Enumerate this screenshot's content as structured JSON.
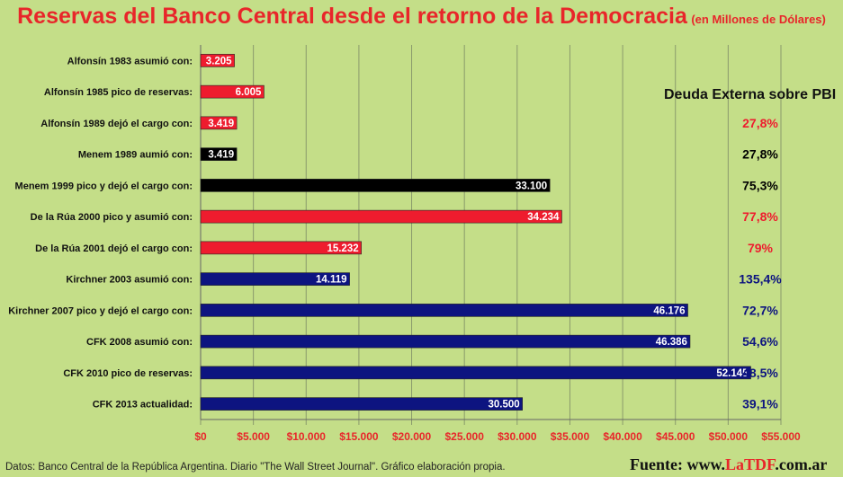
{
  "chart_data": {
    "type": "bar",
    "orientation": "horizontal",
    "title": "Reservas del Banco Central desde el retorno de la Democracia",
    "subtitle": "(en Millones de Dólares)",
    "xlim": [
      0,
      55000
    ],
    "x_ticks": [
      "$0",
      "$5.000",
      "$10.000",
      "$15.000",
      "$20.000",
      "$25.000",
      "$30.000",
      "$35.000",
      "$40.000",
      "$45.000",
      "$50.000",
      "$55.000"
    ],
    "x_tick_values": [
      0,
      5000,
      10000,
      15000,
      20000,
      25000,
      30000,
      35000,
      40000,
      45000,
      50000,
      55000
    ],
    "grid": true,
    "categories": [
      "Alfonsín 1983 asumió con:",
      "Alfonsín 1985 pico de reservas:",
      "Alfonsín 1989 dejó el cargo con:",
      "Menem 1989 aumió con:",
      "Menem 1999 pico y dejó el cargo con:",
      "De la Rúa 2000 pico y asumió con:",
      "De la Rúa 2001 dejó el cargo con:",
      "Kirchner 2003 asumió con:",
      "Kirchner 2007 pico y dejó el cargo con:",
      "CFK 2008 asumió con:",
      "CFK 2010 pico de reservas:",
      "CFK 2013 actualidad:"
    ],
    "values": [
      3205,
      6005,
      3419,
      3419,
      33100,
      34234,
      15232,
      14119,
      46176,
      46386,
      52145,
      30500
    ],
    "value_labels": [
      "3.205",
      "6.005",
      "3.419",
      "3.419",
      "33.100",
      "34.234",
      "15.232",
      "14.119",
      "46.176",
      "46.386",
      "52.145",
      "30.500"
    ],
    "bar_colors": [
      "#ee1c2e",
      "#ee1c2e",
      "#ee1c2e",
      "#000000",
      "#000000",
      "#ee1c2e",
      "#ee1c2e",
      "#0d1480",
      "#0d1480",
      "#0d1480",
      "#0d1480",
      "#0d1480"
    ],
    "debt_header": "Deuda Externa sobre PBI",
    "debt_values": [
      "",
      "",
      "27,8%",
      "27,8%",
      "75,3%",
      "77,8%",
      "79%",
      "135,4%",
      "72,7%",
      "54,6%",
      "48,5%",
      "39,1%"
    ],
    "debt_colors": [
      "#ee1c2e",
      "#ee1c2e",
      "#ee1c2e",
      "#000000",
      "#000000",
      "#ee1c2e",
      "#ee1c2e",
      "#0d1480",
      "#0d1480",
      "#0d1480",
      "#0d1480",
      "#0d1480"
    ]
  },
  "footer": {
    "source": "Datos: Banco Central de la República Argentina. Diario \"The Wall Street Journal\". Gráfico elaboración propia.",
    "credit_prefix": "Fuente: www.",
    "credit_brand": "LaTDF",
    "credit_suffix": ".com.ar"
  },
  "colors": {
    "background": "#c4de88",
    "title": "#e8262a",
    "tick_labels": "#e8262a",
    "grid": "#8a9a6c"
  }
}
